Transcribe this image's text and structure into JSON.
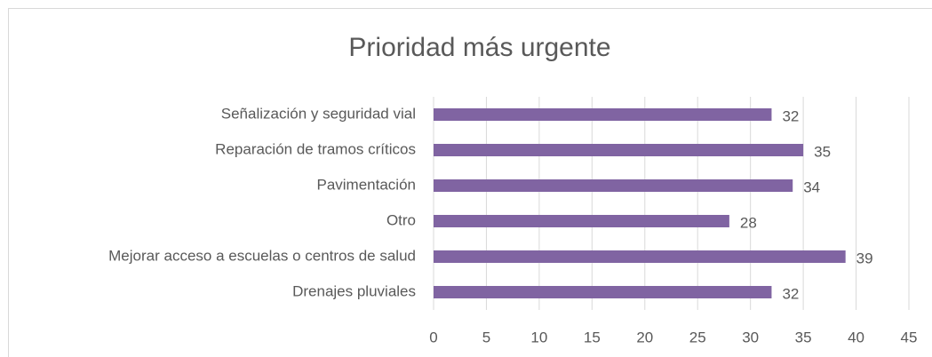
{
  "chart_data": {
    "type": "barh",
    "title": "Prioridad más urgente",
    "categories": [
      "Señalización y seguridad vial",
      "Reparación de tramos críticos",
      "Pavimentación",
      "Otro",
      "Mejorar acceso a escuelas o centros de salud",
      "Drenajes pluviales"
    ],
    "values": [
      32,
      35,
      34,
      28,
      39,
      32
    ],
    "color": "#8064a2",
    "xlim": [
      0,
      45
    ],
    "xticks": [
      0,
      5,
      10,
      15,
      20,
      25,
      30,
      35,
      40,
      45
    ],
    "grid": true
  }
}
